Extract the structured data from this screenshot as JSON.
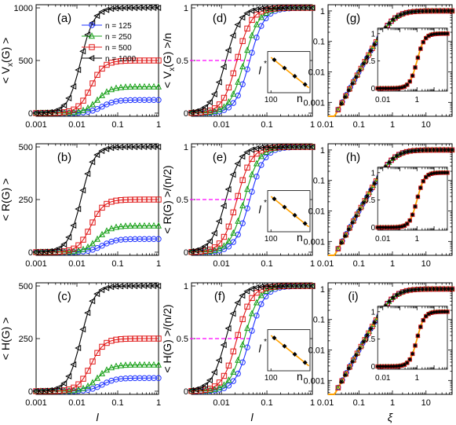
{
  "x_tick_labels_l": [
    "0.001",
    "0.01",
    "0.1",
    "1"
  ],
  "x_tick_labels_xi": [
    "0.01",
    "0.1",
    "1",
    "10"
  ],
  "inset_x_tick_labels": [
    "100",
    "n"
  ],
  "inset_xi_tick_labels": [
    "0.01",
    "1"
  ],
  "inset_y_tick_labels": [
    "0",
    "0.5",
    "1"
  ],
  "axis_labels": {
    "l_left": "l",
    "l_mid": "l",
    "xi": "ξ",
    "inset_l_star": "l",
    "inset_star": "*"
  },
  "colors": {
    "n125": "#1f33ff",
    "n250": "#18a018",
    "n500": "#e01818",
    "n1000": "#000000",
    "dashed": "#ff00ff",
    "fit": "#ffa000"
  },
  "legend": [
    {
      "label": "n = 125",
      "marker": "circle",
      "color": "#1f33ff"
    },
    {
      "label": "n = 250",
      "marker": "triangle-up",
      "color": "#18a018"
    },
    {
      "label": "n = 500",
      "marker": "square",
      "color": "#e01818"
    },
    {
      "label": "n = 1000",
      "marker": "triangle-left",
      "color": "#000000"
    }
  ],
  "chart_data": [
    {
      "id": "a",
      "tag": "(a)",
      "type": "line",
      "ylabel": "< Vx(G) >",
      "ylabel_main": "< V",
      "ylabel_sub": "x",
      "ylabel_tail": "(G) >",
      "xlabel": "",
      "xscale": "log",
      "xlim": [
        0.001,
        1
      ],
      "ylim": [
        -30,
        1030
      ],
      "yticks": [
        0,
        500,
        1000
      ],
      "ytick_labels": [
        "0",
        "500",
        "1000"
      ],
      "plateaus": [
        125,
        250,
        500,
        1000
      ],
      "midpoints": [
        0.042,
        0.032,
        0.022,
        0.0125
      ],
      "legend": true
    },
    {
      "id": "b",
      "tag": "(b)",
      "type": "line",
      "ylabel": "< R(G) >",
      "xlabel": "",
      "xscale": "log",
      "xlim": [
        0.001,
        1
      ],
      "ylim": [
        -15,
        515
      ],
      "yticks": [
        0,
        250,
        500
      ],
      "ytick_labels": [
        "0",
        "250",
        "500"
      ],
      "plateaus": [
        62.5,
        125,
        250,
        500
      ],
      "midpoints": [
        0.042,
        0.032,
        0.022,
        0.0125
      ]
    },
    {
      "id": "c",
      "tag": "(c)",
      "type": "line",
      "ylabel": "< H(G) >",
      "xlabel": "l",
      "xscale": "log",
      "xlim": [
        0.001,
        1
      ],
      "ylim": [
        -15,
        515
      ],
      "yticks": [
        0,
        250,
        500
      ],
      "ytick_labels": [
        "0",
        "250",
        "500"
      ],
      "plateaus": [
        62.5,
        125,
        250,
        500
      ],
      "midpoints": [
        0.042,
        0.032,
        0.022,
        0.0125
      ]
    },
    {
      "id": "d",
      "tag": "(d)",
      "type": "line",
      "ylabel": "< Vx(G) >/n",
      "ylabel_main": "< V",
      "ylabel_sub": "x",
      "ylabel_tail": "(G) >/n",
      "xlabel": "",
      "xscale": "log",
      "xlim": [
        0.0022,
        1
      ],
      "ylim": [
        -0.03,
        1.03
      ],
      "yticks": [
        0,
        0.5,
        1
      ],
      "ytick_labels": [
        "0",
        "0.5",
        "1"
      ],
      "plateaus": [
        1,
        1,
        1,
        1
      ],
      "midpoints": [
        0.042,
        0.032,
        0.022,
        0.0125
      ],
      "dashed_y": 0.5,
      "inset": {
        "type": "scatter",
        "x": [
          125,
          250,
          500,
          1000
        ],
        "y_rel": [
          0.8,
          0.6,
          0.4,
          0.2
        ],
        "xlabel": "n",
        "xtick": "100",
        "fit": "line"
      }
    },
    {
      "id": "e",
      "tag": "(e)",
      "type": "line",
      "ylabel": "< R(G) >/(n/2)",
      "xlabel": "",
      "xscale": "log",
      "xlim": [
        0.0022,
        1
      ],
      "ylim": [
        -0.03,
        1.03
      ],
      "yticks": [
        0,
        0.5,
        1
      ],
      "ytick_labels": [
        "0",
        "0.5",
        "1"
      ],
      "plateaus": [
        1,
        1,
        1,
        1
      ],
      "midpoints": [
        0.042,
        0.032,
        0.022,
        0.0125
      ],
      "dashed_y": 0.5,
      "inset": {
        "type": "scatter",
        "x": [
          125,
          250,
          500,
          1000
        ],
        "y_rel": [
          0.8,
          0.6,
          0.4,
          0.2
        ],
        "xlabel": "n",
        "xtick": "100",
        "fit": "line"
      }
    },
    {
      "id": "f",
      "tag": "(f)",
      "type": "line",
      "ylabel": "< H(G) >/(n/2)",
      "xlabel": "l",
      "xscale": "log",
      "xlim": [
        0.0022,
        1
      ],
      "ylim": [
        -0.03,
        1.03
      ],
      "yticks": [
        0,
        0.5,
        1
      ],
      "ytick_labels": [
        "0",
        "0.5",
        "1"
      ],
      "plateaus": [
        1,
        1,
        1,
        1
      ],
      "midpoints": [
        0.042,
        0.032,
        0.022,
        0.0125
      ],
      "dashed_y": 0.5,
      "inset": {
        "type": "scatter",
        "x": [
          125,
          250,
          500,
          1000
        ],
        "y_rel": [
          0.8,
          0.6,
          0.4,
          0.2
        ],
        "xlabel": "n",
        "xtick": "100",
        "fit": "line"
      }
    },
    {
      "id": "g",
      "tag": "(g)",
      "type": "scatter",
      "ylabel": "",
      "xlabel": "",
      "xscale": "log",
      "yscale": "log",
      "xlim": [
        0.012,
        60
      ],
      "ylim": [
        0.00035,
        1.6
      ],
      "yticks": [
        0.001,
        0.01,
        0.1,
        1
      ],
      "ytick_labels": [
        "0.001",
        "0.01",
        "0.1",
        "1"
      ],
      "collapse": {
        "knee_xi": 1.0,
        "slope": 2
      },
      "inset": {
        "type": "scatter",
        "xscale": "log",
        "xlim": [
          0.005,
          60
        ],
        "ylim": [
          -0.05,
          1.1
        ]
      }
    },
    {
      "id": "h",
      "tag": "(h)",
      "type": "scatter",
      "ylabel": "",
      "xlabel": "",
      "xscale": "log",
      "yscale": "log",
      "xlim": [
        0.012,
        60
      ],
      "ylim": [
        0.00035,
        1.6
      ],
      "yticks": [
        0.001,
        0.01,
        0.1,
        1
      ],
      "ytick_labels": [
        "0.001",
        "0.01",
        "0.1",
        "1"
      ],
      "collapse": {
        "knee_xi": 1.0,
        "slope": 2
      },
      "inset": {
        "type": "scatter",
        "xscale": "log",
        "xlim": [
          0.005,
          60
        ],
        "ylim": [
          -0.05,
          1.1
        ]
      }
    },
    {
      "id": "i",
      "tag": "(i)",
      "type": "scatter",
      "ylabel": "",
      "xlabel": "ξ",
      "xscale": "log",
      "yscale": "log",
      "xlim": [
        0.012,
        60
      ],
      "ylim": [
        0.00035,
        1.6
      ],
      "yticks": [
        0.001,
        0.01,
        0.1,
        1
      ],
      "ytick_labels": [
        "0.001",
        "0.01",
        "0.1",
        "1"
      ],
      "collapse": {
        "knee_xi": 1.0,
        "slope": 2
      },
      "inset": {
        "type": "scatter",
        "xscale": "log",
        "xlim": [
          0.005,
          60
        ],
        "ylim": [
          -0.05,
          1.1
        ]
      }
    }
  ]
}
